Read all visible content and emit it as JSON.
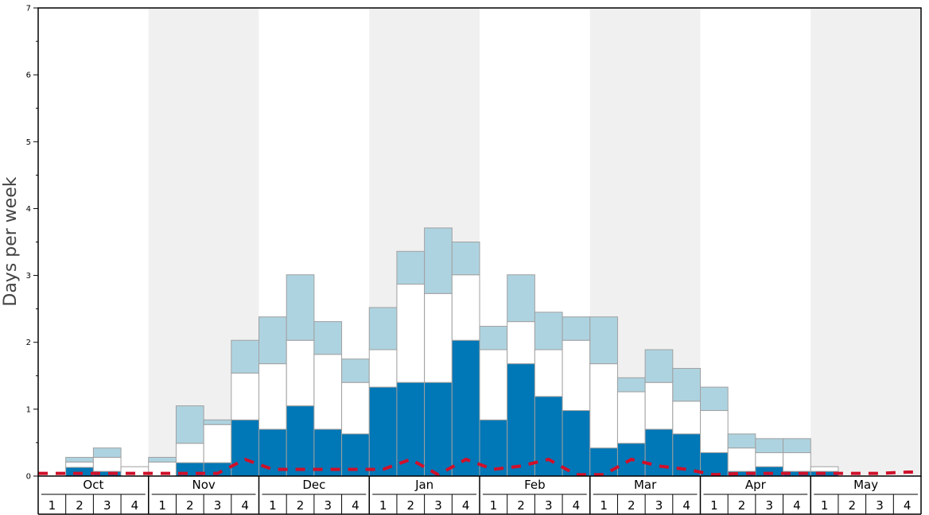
{
  "chart_data": {
    "type": "bar",
    "stacked": true,
    "ylabel": "Days per week",
    "ylim": [
      0,
      7
    ],
    "yticks": [
      0,
      1,
      2,
      3,
      4,
      5,
      6,
      7
    ],
    "months": [
      "Oct",
      "Nov",
      "Dec",
      "Jan",
      "Feb",
      "Mar",
      "Apr",
      "May"
    ],
    "weeks": [
      "1",
      "2",
      "3",
      "4"
    ],
    "colors": {
      "dark": "#0077b6",
      "middle": "#ffffff",
      "top": "#aed3e0",
      "line": "#d0102a",
      "band": "#f0f0f0"
    },
    "series": [
      {
        "key": "dark",
        "values": [
          0,
          0.13,
          0.07,
          0,
          0,
          0.2,
          0.2,
          0.84,
          0.7,
          1.05,
          0.7,
          0.63,
          1.33,
          1.4,
          1.4,
          2.03,
          0.84,
          1.68,
          1.19,
          0.98,
          0.42,
          0.49,
          0.7,
          0.63,
          0.35,
          0.07,
          0.14,
          0.07,
          0.07,
          0,
          0,
          0
        ]
      },
      {
        "key": "middle",
        "values": [
          0,
          0.08,
          0.21,
          0.14,
          0.21,
          0.29,
          0.57,
          0.7,
          0.98,
          0.98,
          1.12,
          0.77,
          0.56,
          1.47,
          1.33,
          0.98,
          1.05,
          0.63,
          0.7,
          1.05,
          1.26,
          0.77,
          0.7,
          0.49,
          0.63,
          0.35,
          0.21,
          0.28,
          0.07,
          0,
          0,
          0
        ]
      },
      {
        "key": "top",
        "values": [
          0,
          0.07,
          0.14,
          0,
          0.07,
          0.56,
          0.07,
          0.49,
          0.7,
          0.98,
          0.49,
          0.35,
          0.63,
          0.49,
          0.98,
          0.49,
          0.35,
          0.7,
          0.56,
          0.35,
          0.7,
          0.21,
          0.49,
          0.49,
          0.35,
          0.21,
          0.21,
          0.21,
          0,
          0,
          0,
          0
        ]
      }
    ],
    "line": [
      0.04,
      0.04,
      0.04,
      0.04,
      0.04,
      0.04,
      0.04,
      0.25,
      0.1,
      0.1,
      0.1,
      0.1,
      0.1,
      0.25,
      0.02,
      0.25,
      0.1,
      0.15,
      0.25,
      0.02,
      0.02,
      0.25,
      0.15,
      0.1,
      0.02,
      0.04,
      0.04,
      0.04,
      0.04,
      0.04,
      0.04,
      0.06
    ]
  }
}
